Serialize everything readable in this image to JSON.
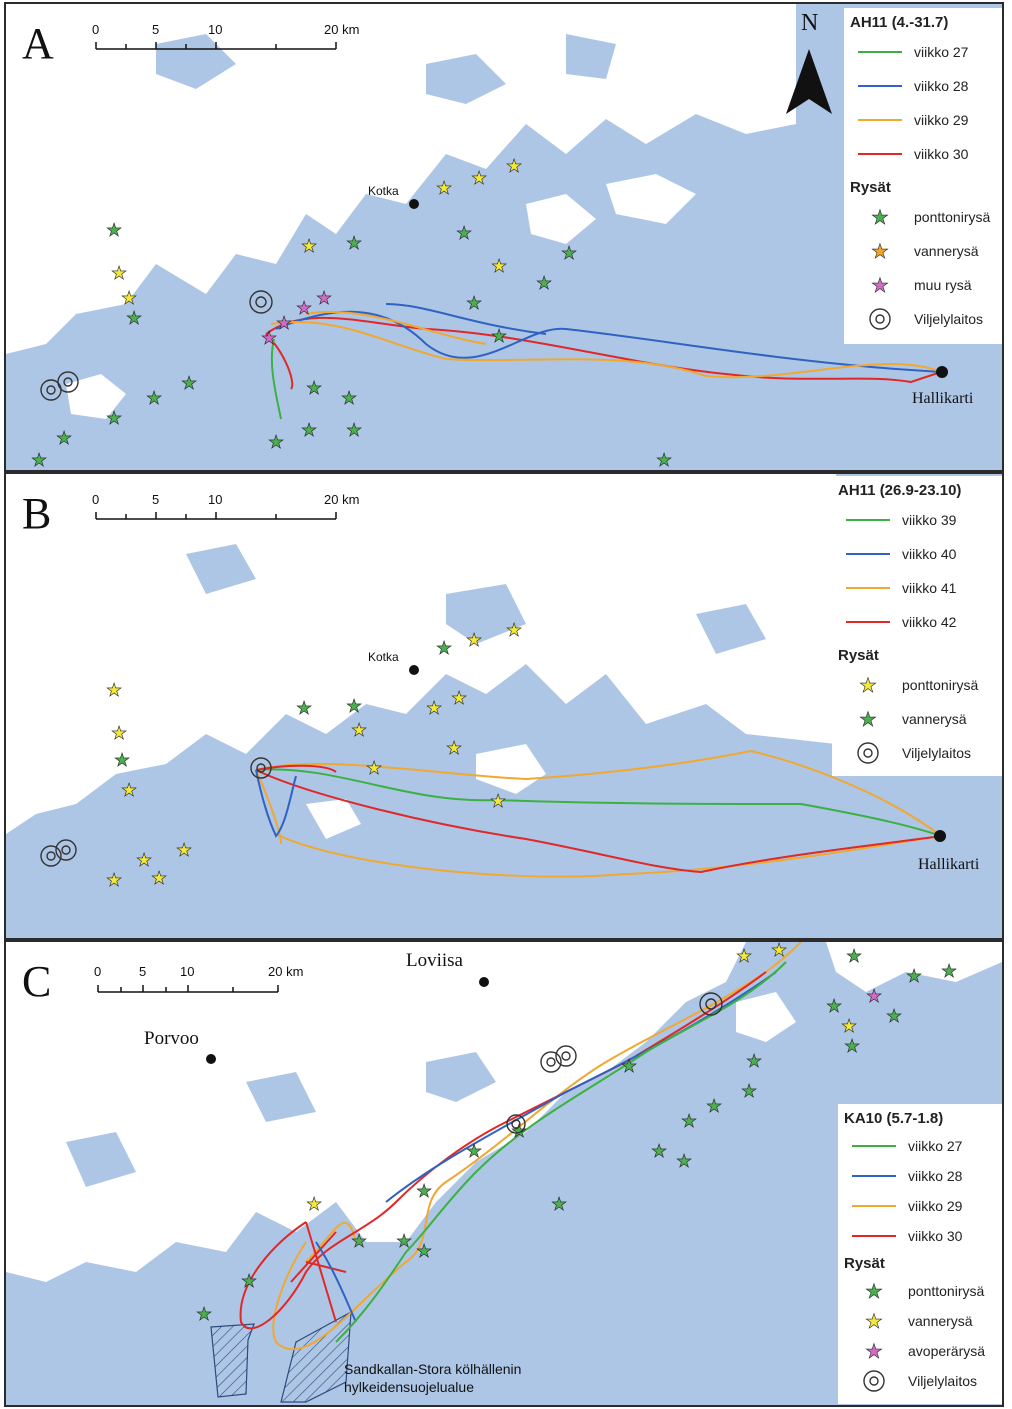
{
  "panels": [
    {
      "letter": "A",
      "scale_labels": [
        "0",
        "5",
        "10",
        "20 km"
      ],
      "north_label": "N",
      "places": {
        "kotka": "Kotka",
        "hallikarti": "Hallikarti"
      },
      "legend": {
        "title": "AH11 (4.-31.7)",
        "tracks": [
          {
            "label": "viikko 27",
            "color": "#3cb043"
          },
          {
            "label": "viikko 28",
            "color": "#2f62c2"
          },
          {
            "label": "viikko 29",
            "color": "#f0a830"
          },
          {
            "label": "viikko 30",
            "color": "#e02828"
          }
        ],
        "traps_title": "Rysät",
        "traps": [
          {
            "label": "ponttonirysä",
            "color": "#4caf50"
          },
          {
            "label": "vannerysä",
            "color": "#f5a623"
          },
          {
            "label": "muu rysä",
            "color": "#d36bc6"
          }
        ],
        "farm_label": "Viljelylaitos"
      }
    },
    {
      "letter": "B",
      "scale_labels": [
        "0",
        "5",
        "10",
        "20 km"
      ],
      "places": {
        "kotka": "Kotka",
        "hallikarti": "Hallikarti"
      },
      "legend": {
        "title": "AH11 (26.9-23.10)",
        "tracks": [
          {
            "label": "viikko 39",
            "color": "#3cb043"
          },
          {
            "label": "viikko 40",
            "color": "#2f62c2"
          },
          {
            "label": "viikko 41",
            "color": "#f0a830"
          },
          {
            "label": "viikko 42",
            "color": "#e02828"
          }
        ],
        "traps_title": "Rysät",
        "traps": [
          {
            "label": "ponttonirysä",
            "color": "#f2e93a"
          },
          {
            "label": "vannerysä",
            "color": "#4caf50"
          }
        ],
        "farm_label": "Viljelylaitos"
      }
    },
    {
      "letter": "C",
      "scale_labels": [
        "0",
        "5",
        "10",
        "20 km"
      ],
      "places": {
        "loviisa": "Loviisa",
        "porvoo": "Porvoo"
      },
      "protected_area": "Sandkallan-Stora kölhällenin hylkeidensuojelualue",
      "legend": {
        "title": "KA10 (5.7-1.8)",
        "tracks": [
          {
            "label": "viikko 27",
            "color": "#3cb043"
          },
          {
            "label": "viikko 28",
            "color": "#2f62c2"
          },
          {
            "label": "viikko 29",
            "color": "#f0a830"
          },
          {
            "label": "viikko 30",
            "color": "#e02828"
          }
        ],
        "traps_title": "Rysät",
        "traps": [
          {
            "label": "ponttonirysä",
            "color": "#4caf50"
          },
          {
            "label": "vannerysä",
            "color": "#f2e93a"
          },
          {
            "label": "avoperärysä",
            "color": "#d36bc6"
          }
        ],
        "farm_label": "Viljelylaitos"
      }
    }
  ]
}
